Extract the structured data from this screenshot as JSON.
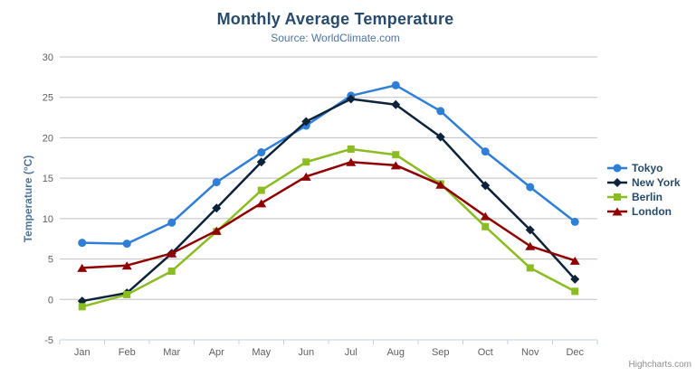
{
  "chart_data": {
    "type": "line",
    "title": "Monthly Average Temperature",
    "subtitle": "Source: WorldClimate.com",
    "xlabel": "",
    "ylabel": "Temperature (°C)",
    "categories": [
      "Jan",
      "Feb",
      "Mar",
      "Apr",
      "May",
      "Jun",
      "Jul",
      "Aug",
      "Sep",
      "Oct",
      "Nov",
      "Dec"
    ],
    "yticks": [
      -5,
      0,
      5,
      10,
      15,
      20,
      25,
      30
    ],
    "ylim": [
      -5,
      30
    ],
    "grid": true,
    "legend_position": "right",
    "series": [
      {
        "name": "Tokyo",
        "color": "#2f7ed8",
        "marker": "circle",
        "values": [
          7.0,
          6.9,
          9.5,
          14.5,
          18.2,
          21.5,
          25.2,
          26.5,
          23.3,
          18.3,
          13.9,
          9.6
        ]
      },
      {
        "name": "New York",
        "color": "#0d233a",
        "marker": "diamond",
        "values": [
          -0.2,
          0.8,
          5.7,
          11.3,
          17.0,
          22.0,
          24.8,
          24.1,
          20.1,
          14.1,
          8.6,
          2.5
        ]
      },
      {
        "name": "Berlin",
        "color": "#8bbc21",
        "marker": "square",
        "values": [
          -0.9,
          0.6,
          3.5,
          8.4,
          13.5,
          17.0,
          18.6,
          17.9,
          14.3,
          9.0,
          3.9,
          1.0
        ]
      },
      {
        "name": "London",
        "color": "#910000",
        "marker": "triangle",
        "values": [
          3.9,
          4.2,
          5.7,
          8.5,
          11.9,
          15.2,
          17.0,
          16.6,
          14.2,
          10.3,
          6.6,
          4.8
        ]
      }
    ],
    "credits": "Highcharts.com"
  },
  "colors": {
    "background": "#ffffff",
    "title": "#274b6d",
    "subtitle": "#4d759e",
    "y_axis_title": "#4d759e",
    "axis_label": "#606060",
    "axis_line": "#c0d0e0",
    "tick": "#c0d0e0",
    "gridline": "#c0c0c0",
    "legend_text": "#274b6d",
    "credits": "#909090",
    "menu_icon": "#666666"
  }
}
